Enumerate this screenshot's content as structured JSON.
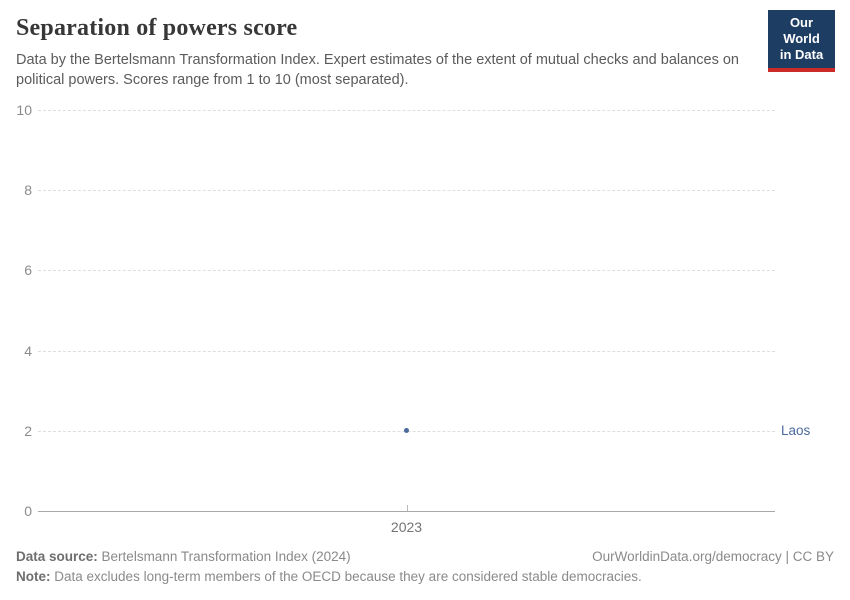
{
  "header": {
    "title": "Separation of powers score",
    "subtitle": "Data by the Bertelsmann Transformation Index. Expert estimates of the extent of mutual checks and balances on political powers. Scores range from 1 to 10 (most separated).",
    "logo": {
      "line1": "Our World",
      "line2": "in Data",
      "bg_color": "#1d3d63",
      "accent_color": "#cc2a26"
    }
  },
  "chart_data": {
    "type": "scatter",
    "title": "Separation of powers score",
    "series": [
      {
        "name": "Laos",
        "x": [
          2023
        ],
        "values": [
          2
        ],
        "color": "#4c6a9c"
      }
    ],
    "xticks": [
      2023
    ],
    "yticks": [
      0,
      2,
      4,
      6,
      8,
      10
    ],
    "ylim": [
      0,
      10
    ],
    "xlabel": "",
    "ylabel": "",
    "grid": "horizontal-dashed",
    "gridline_color": "#dedede",
    "axis_color": "#a8a8a8",
    "legend_position": "right-inline-label"
  },
  "footer": {
    "data_source_label": "Data source:",
    "data_source_value": "Bertelsmann Transformation Index (2024)",
    "link": "OurWorldinData.org/democracy | CC BY",
    "note_label": "Note:",
    "note_value": "Data excludes long-term members of the OECD because they are considered stable democracies."
  }
}
